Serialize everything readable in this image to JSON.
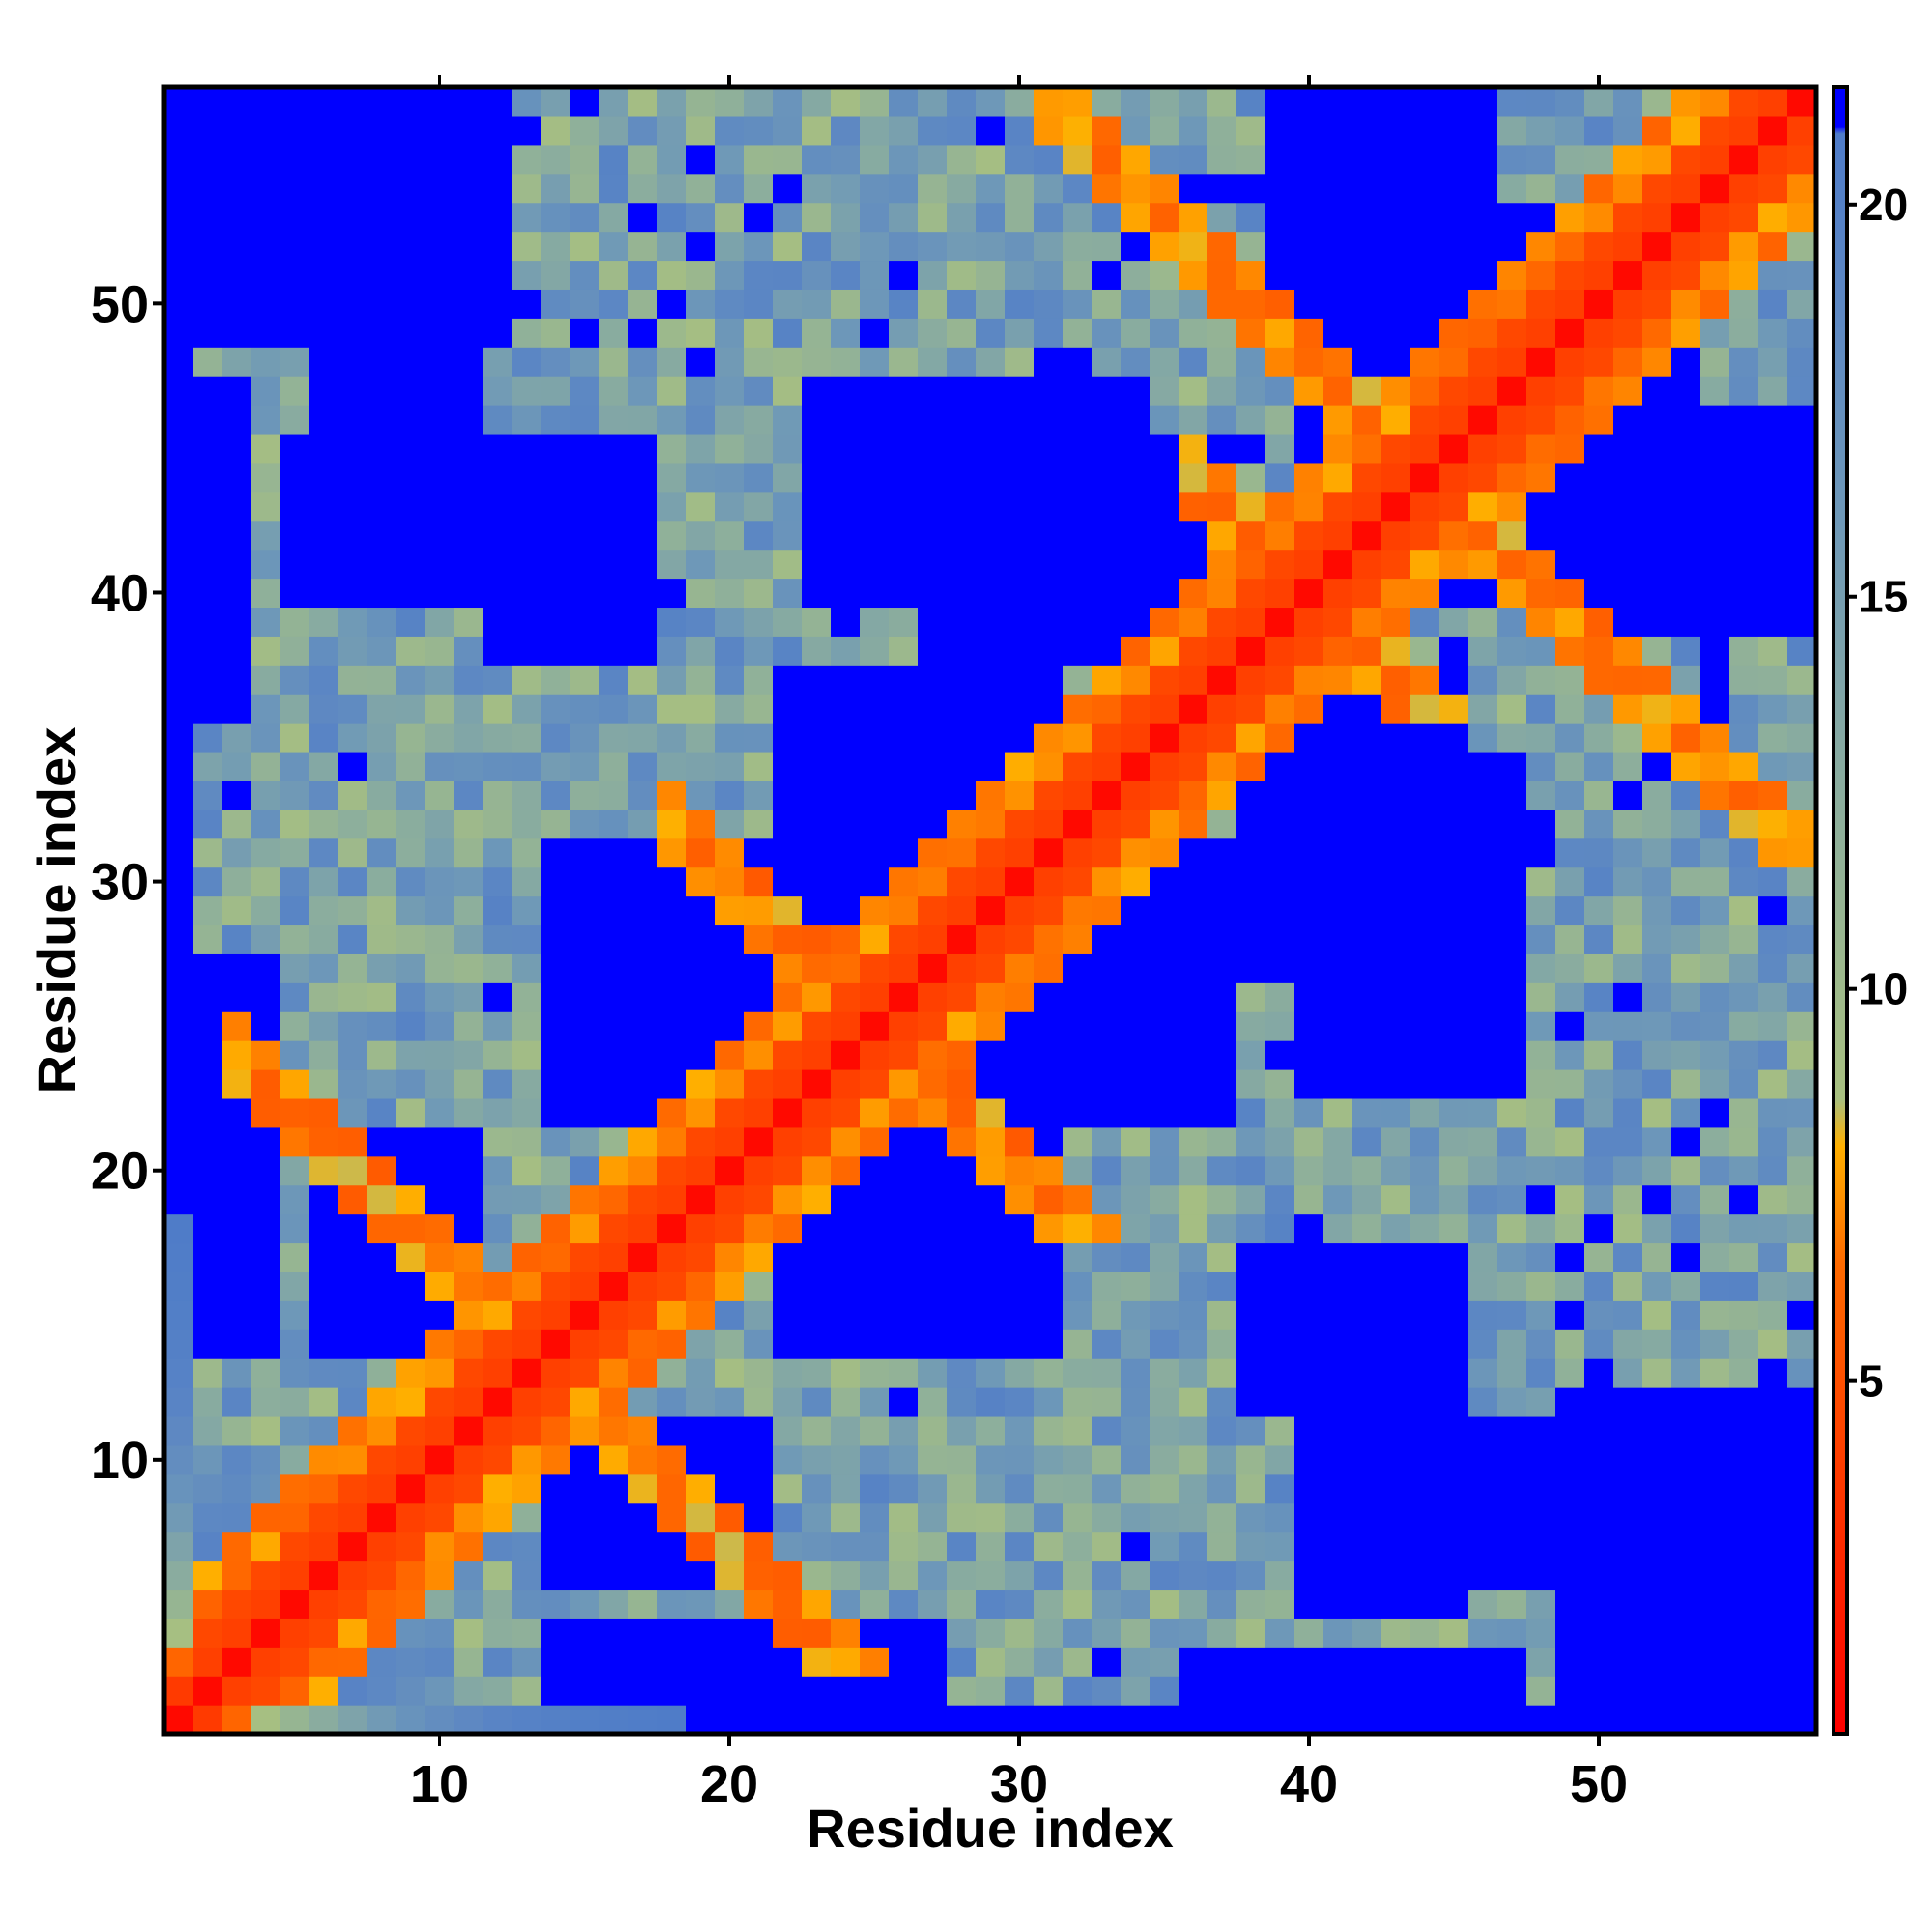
{
  "chart_data": {
    "type": "heatmap",
    "title": "",
    "xlabel": "Residue index",
    "ylabel": "Residue index",
    "n_residues": 57,
    "x_range": [
      0.5,
      57.5
    ],
    "y_range": [
      0.5,
      57.5
    ],
    "x_ticks": [
      10,
      20,
      30,
      40,
      50
    ],
    "y_ticks": [
      10,
      20,
      30,
      40,
      50
    ],
    "value_range": [
      0.5,
      21.5
    ],
    "colorbar": {
      "ticks": [
        5,
        10,
        15,
        20
      ],
      "stops": [
        {
          "value": 0.5,
          "color": "#ff0000"
        },
        {
          "value": 6.5,
          "color": "#ff6a00"
        },
        {
          "value": 8.0,
          "color": "#ffb000"
        },
        {
          "value": 8.6,
          "color": "#a8c080"
        },
        {
          "value": 12.0,
          "color": "#8fb09a"
        },
        {
          "value": 16.0,
          "color": "#6e98b8"
        },
        {
          "value": 19.0,
          "color": "#5b86c4"
        },
        {
          "value": 20.9,
          "color": "#4f7cc8"
        },
        {
          "value": 21.0,
          "color": "#0000ff"
        },
        {
          "value": 21.5,
          "color": "#0000ff"
        }
      ]
    },
    "cutoff_color": "#0000ff",
    "cutoff_value": 21,
    "matrix_description": "symmetric inter-residue distance matrix; red diagonal band (distance < 5), orange contacts along antidiagonals, blue blocks beyond cutoff",
    "values": [
      [
        1.0,
        3.8,
        6.2,
        8.9,
        11.0,
        12.6,
        14.1,
        15.6,
        16.9,
        17.8,
        18.6,
        19.3,
        19.8,
        20.1,
        20.4,
        20.6,
        20.8,
        20.9,
        21.0,
        21.0,
        21.0,
        21.0,
        21.0,
        21.0,
        21.0,
        21.0,
        21.0,
        21.0,
        21.0,
        21.0,
        21.0,
        21.0,
        21.0,
        21.0,
        21.0,
        21.0,
        21.0,
        21.0,
        21.0,
        21.0,
        21.0,
        21.0,
        21.0,
        21.0,
        21.0,
        21.0,
        21.0,
        21.0,
        21.0,
        21.0,
        21.0,
        21.0,
        21.0,
        21.0,
        21.0,
        21.0,
        21.0
      ]
    ]
  }
}
